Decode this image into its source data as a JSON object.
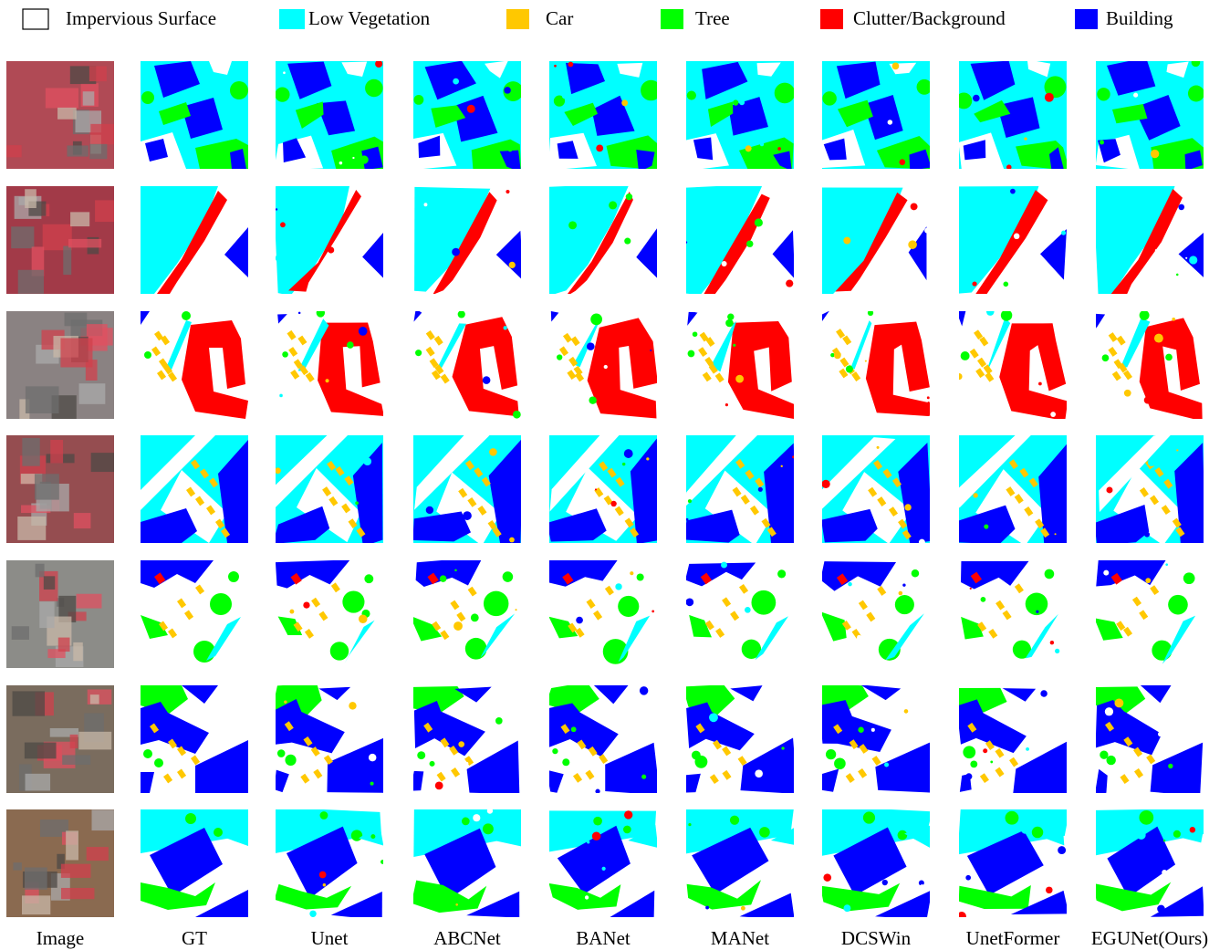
{
  "legend": [
    "Impervious Surface",
    "Low Vegetation",
    "Car",
    "Tree",
    "Clutter/Background",
    "Building"
  ],
  "columns": [
    "Image",
    "GT",
    "Unet",
    "ABCNet",
    "BANet",
    "MANet",
    "DCSWin",
    "UnetFormer",
    "EGUNet(Ours)"
  ]
}
